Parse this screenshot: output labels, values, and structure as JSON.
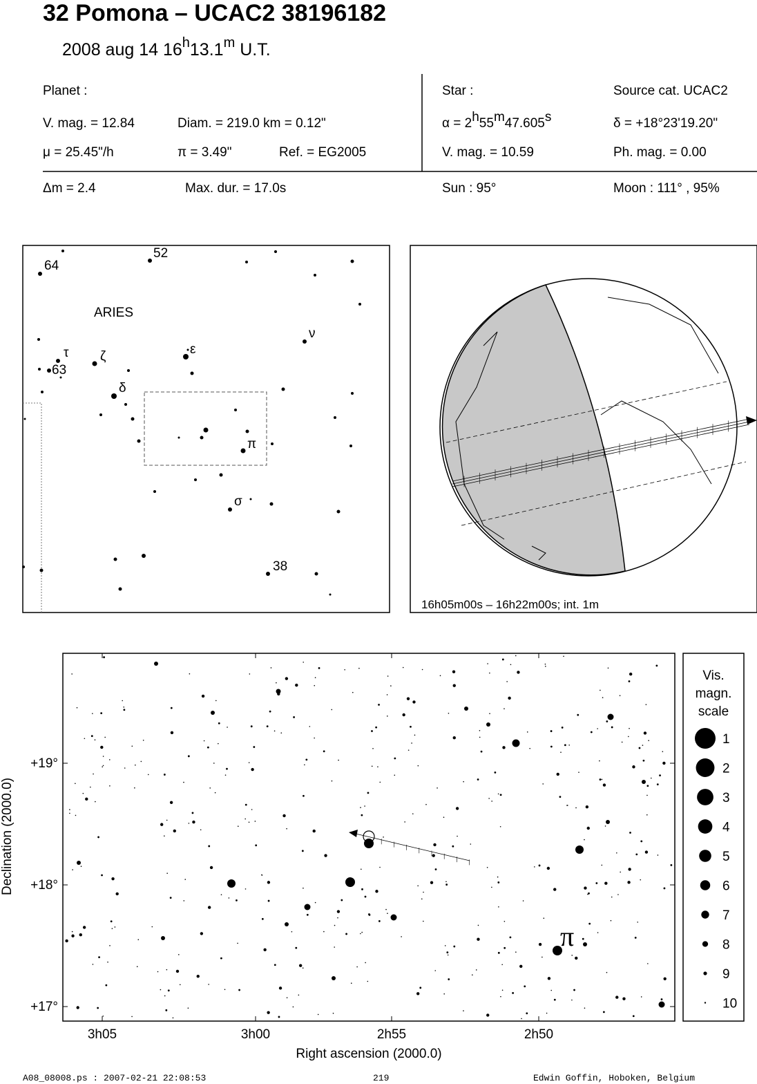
{
  "header": {
    "title": "32 Pomona  –  UCAC2 38196182",
    "date": [
      "2008 aug 14  16",
      "h",
      "13.1",
      "m",
      " U.T."
    ]
  },
  "planet": {
    "heading": "Planet :",
    "vmag": "V. mag. = 12.84",
    "diam": "Diam. = 219.0 km = 0.12\"",
    "mu": "μ =  25.45\"/h",
    "parallax": "π =  3.49\"",
    "ref": "Ref. = EG2005"
  },
  "star": {
    "heading": "Star :",
    "source": "Source cat.  UCAC2",
    "ra": [
      "α =  2",
      "h",
      "55",
      "m",
      "47.605",
      "s"
    ],
    "dec": "δ = +18°23'19.20\"",
    "vmag": "V. mag. = 10.59",
    "phmag": "Ph. mag. =  0.00"
  },
  "event": {
    "dm": "Δm = 2.4",
    "maxdur": "Max. dur. = 17.0s",
    "sun": "Sun :  95°",
    "moon": "Moon : 111° , 95%"
  },
  "finder": {
    "labels": [
      "64",
      "52",
      "ARIES",
      "τ",
      "63",
      "ζ",
      "ε",
      "ν",
      "δ",
      "π",
      "σ",
      "38"
    ]
  },
  "globe": {
    "caption": "16h05m00s – 16h22m00s; int.  1m"
  },
  "chart": {
    "yticks": [
      "+19°",
      "+18°",
      "+17°"
    ],
    "xticks": [
      "3h05",
      "3h00",
      "2h55",
      "2h50"
    ],
    "xlabel": "Right ascension (2000.0)",
    "ylabel": "Declination (2000.0)",
    "star_label": "π"
  },
  "legend": {
    "title": [
      "Vis.",
      "magn.",
      "scale"
    ],
    "magnitudes": [
      1,
      2,
      3,
      4,
      5,
      6,
      7,
      8,
      9,
      10
    ]
  },
  "footer": {
    "file": "A08_08008.ps : 2007-02-21 22:08:53",
    "page": "219",
    "author": "Edwin Goffin, Hoboken, Belgium"
  }
}
